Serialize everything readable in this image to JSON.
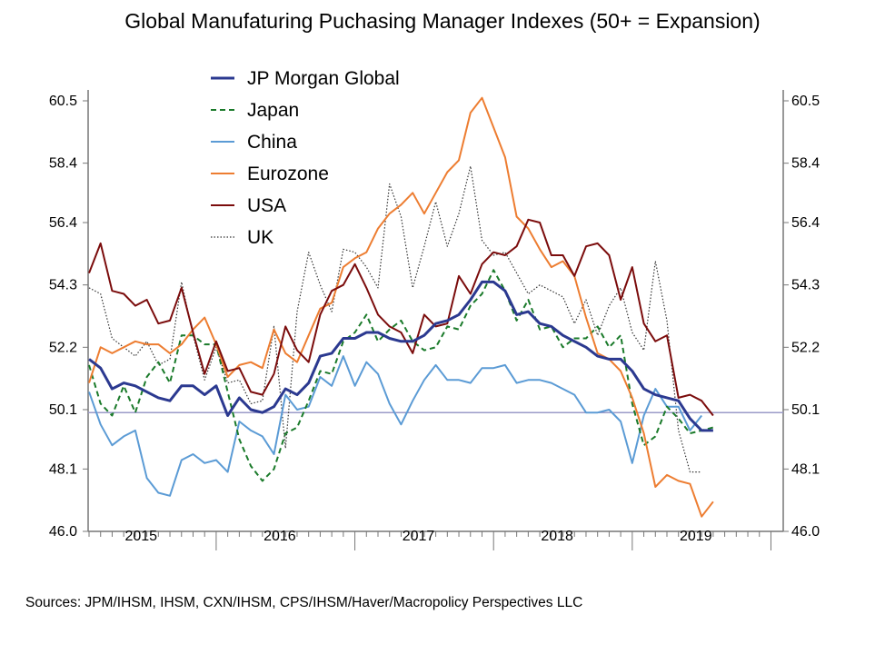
{
  "chart_data": {
    "type": "line",
    "title": "Global Manufaturing Puchasing Manager Indexes (50+ = Expansion)",
    "source": "Sources:  JPM/IHSM, IHSM, CXN/IHSM, CPS/IHSM/Haver/Macropolicy Perspectives LLC",
    "x_start": "2015-02",
    "x_frequency": "monthly",
    "x_tick_labels": [
      "2015",
      "2016",
      "2017",
      "2018",
      "2019"
    ],
    "ylim": [
      46.0,
      60.5
    ],
    "y_tick_labels": [
      "46.0",
      "48.1",
      "50.1",
      "52.2",
      "54.3",
      "56.4",
      "58.4",
      "60.5"
    ],
    "y_axis_both_sides": true,
    "reference_line": 50,
    "grid": false,
    "legend_placement": "top-left",
    "series": [
      {
        "name": "JP Morgan Global",
        "color": "#2b3990",
        "style": "solid-thick",
        "values": [
          51.8,
          51.5,
          50.8,
          51.0,
          50.9,
          50.7,
          50.5,
          50.4,
          50.9,
          50.9,
          50.6,
          50.9,
          49.9,
          50.5,
          50.1,
          50.0,
          50.2,
          50.8,
          50.6,
          51.0,
          51.9,
          52.0,
          52.5,
          52.5,
          52.7,
          52.7,
          52.5,
          52.4,
          52.4,
          52.6,
          53.0,
          53.1,
          53.3,
          53.8,
          54.4,
          54.4,
          54.1,
          53.3,
          53.4,
          53.0,
          52.9,
          52.6,
          52.4,
          52.2,
          51.9,
          51.8,
          51.8,
          51.4,
          50.8,
          50.6,
          50.5,
          50.4,
          49.8,
          49.4,
          49.4
        ]
      },
      {
        "name": "Japan",
        "color": "#1a7a2a",
        "style": "dashed",
        "values": [
          51.6,
          50.3,
          49.9,
          50.9,
          50.0,
          51.2,
          51.7,
          51.0,
          52.6,
          52.6,
          52.3,
          52.3,
          50.7,
          49.1,
          48.2,
          47.7,
          48.1,
          49.3,
          49.5,
          50.4,
          51.4,
          51.3,
          52.4,
          52.7,
          53.3,
          52.4,
          52.8,
          53.1,
          52.4,
          52.1,
          52.2,
          52.9,
          52.8,
          53.6,
          54.0,
          54.8,
          54.1,
          53.1,
          53.8,
          52.8,
          52.9,
          52.2,
          52.5,
          52.5,
          52.9,
          52.2,
          52.6,
          50.3,
          48.9,
          49.2,
          50.2,
          49.8,
          49.3,
          49.4,
          49.5
        ]
      },
      {
        "name": "China",
        "color": "#5b9bd5",
        "style": "solid",
        "values": [
          50.7,
          49.6,
          48.9,
          49.2,
          49.4,
          47.8,
          47.3,
          47.2,
          48.4,
          48.6,
          48.3,
          48.4,
          48.0,
          49.7,
          49.4,
          49.2,
          48.6,
          50.6,
          50.1,
          50.2,
          51.2,
          50.9,
          51.9,
          50.9,
          51.7,
          51.3,
          50.3,
          49.6,
          50.4,
          51.1,
          51.6,
          51.1,
          51.1,
          51.0,
          51.5,
          51.5,
          51.6,
          51.0,
          51.1,
          51.1,
          51.0,
          50.8,
          50.6,
          50.0,
          50.0,
          50.1,
          49.7,
          48.3,
          49.9,
          50.8,
          50.2,
          50.2,
          49.4,
          49.9
        ]
      },
      {
        "name": "Eurozone",
        "color": "#ed7d31",
        "style": "solid",
        "values": [
          51.0,
          52.2,
          52.0,
          52.2,
          52.4,
          52.3,
          52.3,
          52.0,
          52.3,
          52.8,
          53.2,
          52.3,
          51.2,
          51.6,
          51.7,
          51.5,
          52.8,
          52.0,
          51.7,
          52.6,
          53.5,
          53.7,
          54.9,
          55.2,
          55.4,
          56.2,
          56.7,
          57.0,
          57.4,
          56.7,
          57.4,
          58.1,
          58.5,
          60.1,
          60.6,
          59.6,
          58.6,
          56.6,
          56.2,
          55.5,
          54.9,
          55.1,
          54.6,
          53.2,
          52.0,
          51.8,
          51.4,
          50.5,
          49.3,
          47.5,
          47.9,
          47.7,
          47.6,
          46.5,
          47.0
        ]
      },
      {
        "name": "USA",
        "color": "#7b0c0c",
        "style": "solid",
        "values": [
          54.7,
          55.7,
          54.1,
          54.0,
          53.6,
          53.8,
          53.0,
          53.1,
          54.2,
          52.7,
          51.3,
          52.4,
          51.4,
          51.5,
          50.7,
          50.6,
          51.3,
          52.9,
          52.1,
          51.7,
          53.3,
          54.1,
          54.3,
          55.0,
          54.2,
          53.3,
          52.9,
          52.7,
          52.0,
          53.3,
          52.9,
          53.0,
          54.6,
          54.0,
          55.0,
          55.4,
          55.3,
          55.6,
          56.5,
          56.4,
          55.3,
          55.3,
          54.6,
          55.6,
          55.7,
          55.3,
          53.8,
          54.9,
          53.0,
          52.4,
          52.6,
          50.5,
          50.6,
          50.4,
          49.9
        ]
      },
      {
        "name": "UK",
        "color": "#333333",
        "style": "dotted",
        "values": [
          54.2,
          54.0,
          52.5,
          52.2,
          51.9,
          52.4,
          51.6,
          51.8,
          54.4,
          52.6,
          51.1,
          52.2,
          51.0,
          51.1,
          50.3,
          50.4,
          52.9,
          48.8,
          53.4,
          55.4,
          54.3,
          53.4,
          55.5,
          55.4,
          54.9,
          54.2,
          57.7,
          56.6,
          54.2,
          55.6,
          57.1,
          55.6,
          56.7,
          58.3,
          55.8,
          55.3,
          55.4,
          54.7,
          54.0,
          54.3,
          54.1,
          53.9,
          53.0,
          53.8,
          52.6,
          53.6,
          54.2,
          52.7,
          52.1,
          55.1,
          53.1,
          49.4,
          48.0,
          48.0
        ]
      }
    ]
  }
}
